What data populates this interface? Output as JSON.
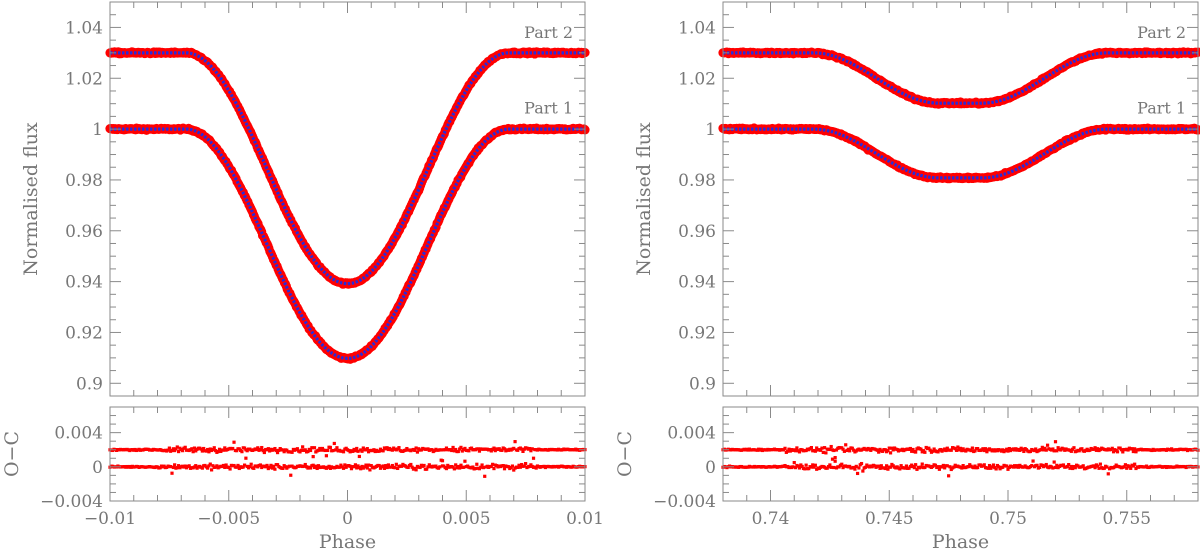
{
  "chart_data": [
    {
      "type": "scatter",
      "panel": "left",
      "xlabel": "Phase",
      "ylabel": "Normalised flux",
      "resid_ylabel": "O−C",
      "xlim": [
        -0.01,
        0.01
      ],
      "ylim": [
        0.895,
        1.05
      ],
      "resid_ylim": [
        -0.004,
        0.007
      ],
      "x_ticks": [
        -0.01,
        -0.005,
        0,
        0.005,
        0.01
      ],
      "x_tick_labels": [
        "−0.01",
        "−0.005",
        "0",
        "0.005",
        "0.01"
      ],
      "x_minor_step": 0.001,
      "y_ticks": [
        0.9,
        0.92,
        0.94,
        0.96,
        0.98,
        1,
        1.02,
        1.04
      ],
      "y_tick_labels": [
        "0.9",
        "0.92",
        "0.94",
        "0.96",
        "0.98",
        "1",
        "1.02",
        "1.04"
      ],
      "y_minor_step": 0.005,
      "resid_ticks": [
        -0.004,
        0,
        0.004
      ],
      "resid_tick_labels": [
        "−0.004",
        "0",
        "0.004"
      ],
      "resid_minor_step": 0.001,
      "series": [
        {
          "name": "Part 1",
          "baseline": 1.0,
          "depth": 0.0902,
          "center": 0.0,
          "contact_outer": 0.0068,
          "contact_inner": 0.0,
          "phase": [
            -0.01,
            -0.0068,
            -0.005,
            -0.0025,
            0,
            0.0025,
            0.005,
            0.0068,
            0.01
          ],
          "flux": [
            1.0,
            1.0,
            0.978,
            0.936,
            0.9098,
            0.936,
            0.978,
            1.0,
            1.0
          ],
          "resid_offset": 0.0,
          "label_anchor": [
            0.0095,
            1.0045
          ]
        },
        {
          "name": "Part 2",
          "baseline": 1.03,
          "depth": 0.0908,
          "center": 0.0,
          "contact_outer": 0.0068,
          "contact_inner": 0.0,
          "phase": [
            -0.01,
            -0.0068,
            -0.005,
            -0.0025,
            0,
            0.0025,
            0.005,
            0.0068,
            0.01
          ],
          "flux": [
            1.03,
            1.03,
            1.008,
            0.966,
            0.9392,
            0.966,
            1.008,
            1.03,
            1.03
          ],
          "resid_offset": 0.002,
          "label_anchor": [
            0.0095,
            1.0343
          ]
        }
      ],
      "colors": {
        "data": "#ff0000",
        "model": "#2a2ad8"
      }
    },
    {
      "type": "scatter",
      "panel": "right",
      "xlabel": "Phase",
      "ylabel": "Normalised flux",
      "resid_ylabel": "O−C",
      "xlim": [
        0.738,
        0.758
      ],
      "ylim": [
        0.895,
        1.05
      ],
      "resid_ylim": [
        -0.004,
        0.007
      ],
      "x_ticks": [
        0.74,
        0.745,
        0.75,
        0.755
      ],
      "x_tick_labels": [
        "0.74",
        "0.745",
        "0.75",
        "0.755"
      ],
      "x_minor_step": 0.001,
      "y_ticks": [
        0.9,
        0.92,
        0.94,
        0.96,
        0.98,
        1,
        1.02,
        1.04
      ],
      "y_tick_labels": [
        "0.9",
        "0.92",
        "0.94",
        "0.96",
        "0.98",
        "1",
        "1.02",
        "1.04"
      ],
      "y_minor_step": 0.005,
      "resid_ticks": [
        -0.004,
        0,
        0.004
      ],
      "resid_tick_labels": [
        "−0.004",
        "0",
        "0.004"
      ],
      "resid_minor_step": 0.001,
      "series": [
        {
          "name": "Part 1",
          "baseline": 1.0,
          "depth": 0.0192,
          "center": 0.748,
          "contact_outer": 0.0062,
          "contact_inner": 0.0009,
          "phase": [
            0.738,
            0.7418,
            0.745,
            0.7471,
            0.748,
            0.7489,
            0.751,
            0.7542,
            0.758
          ],
          "flux": [
            1.0,
            1.0,
            0.9885,
            0.9808,
            0.9808,
            0.9808,
            0.9885,
            1.0,
            1.0
          ],
          "resid_offset": 0.0,
          "label_anchor": [
            0.7575,
            1.0045
          ]
        },
        {
          "name": "Part 2",
          "baseline": 1.03,
          "depth": 0.0198,
          "center": 0.748,
          "contact_outer": 0.0062,
          "contact_inner": 0.0009,
          "phase": [
            0.738,
            0.7418,
            0.745,
            0.7471,
            0.748,
            0.7489,
            0.751,
            0.7542,
            0.758
          ],
          "flux": [
            1.03,
            1.03,
            1.018,
            1.0102,
            1.0102,
            1.0102,
            1.018,
            1.03,
            1.03
          ],
          "resid_offset": 0.002,
          "label_anchor": [
            0.7575,
            1.0343
          ]
        }
      ],
      "colors": {
        "data": "#ff0000",
        "model": "#2a2ad8"
      }
    }
  ]
}
